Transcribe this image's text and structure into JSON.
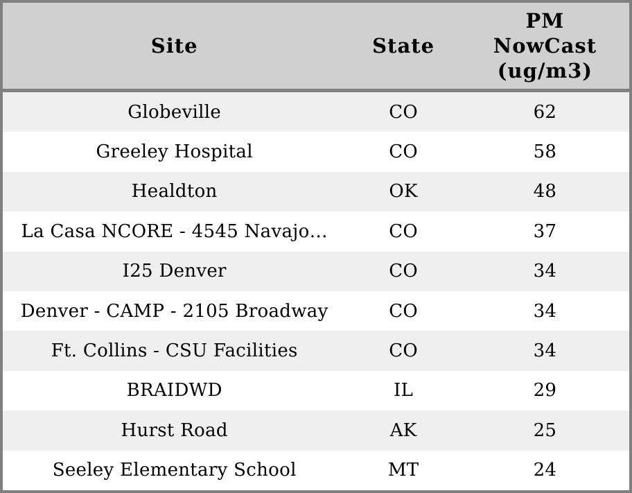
{
  "chart_data": {
    "type": "table",
    "columns": [
      {
        "key": "site",
        "label": "Site"
      },
      {
        "key": "state",
        "label": "State"
      },
      {
        "key": "pm",
        "label": "PM\nNowCast\n(ug/m3)"
      }
    ],
    "rows": [
      {
        "site": "Globeville",
        "state": "CO",
        "pm": 62
      },
      {
        "site": "Greeley Hospital",
        "state": "CO",
        "pm": 58
      },
      {
        "site": "Healdton",
        "state": "OK",
        "pm": 48
      },
      {
        "site": "La Casa NCORE - 4545 Navajo…",
        "state": "CO",
        "pm": 37
      },
      {
        "site": "I25 Denver",
        "state": "CO",
        "pm": 34
      },
      {
        "site": "Denver - CAMP - 2105 Broadway",
        "state": "CO",
        "pm": 34
      },
      {
        "site": "Ft. Collins - CSU Facilities",
        "state": "CO",
        "pm": 34
      },
      {
        "site": "BRAIDWD",
        "state": "IL",
        "pm": 29
      },
      {
        "site": "Hurst Road",
        "state": "AK",
        "pm": 25
      },
      {
        "site": "Seeley Elementary School",
        "state": "MT",
        "pm": 24
      }
    ],
    "legend": "none",
    "grid": "row-stripes"
  },
  "colors": {
    "header_bg": "#d0d0d0",
    "border": "#808080",
    "row_stripe": "#efefef",
    "row_plain": "#ffffff",
    "text": "#000000"
  }
}
